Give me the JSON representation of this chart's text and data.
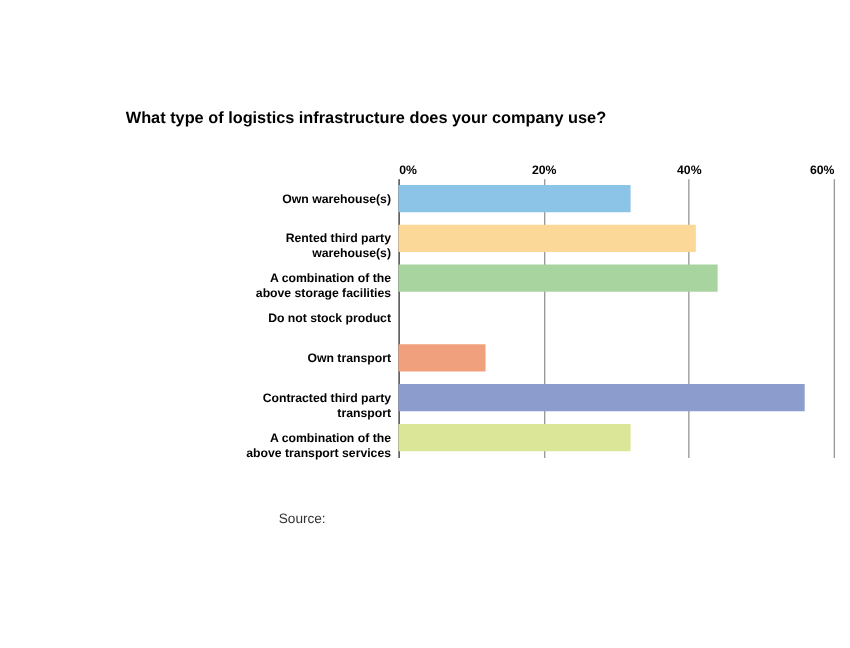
{
  "chart_data": {
    "type": "bar",
    "orientation": "horizontal",
    "title": "What type of logistics infrastructure does your company use?",
    "categories": [
      "Own warehouse(s)",
      "Rented third party warehouse(s)",
      "A combination of the above storage facilities",
      "Do not stock product",
      "Own transport",
      "Contracted third party transport",
      "A combination of the above transport services"
    ],
    "values": [
      32,
      41,
      44,
      0,
      12,
      56,
      32
    ],
    "colors": [
      "#8cc4e8",
      "#fcd898",
      "#a8d4a0",
      "#ffffff",
      "#f0a07c",
      "#8c9ccc",
      "#dce698"
    ],
    "xlim": [
      0,
      60
    ],
    "xticks": [
      {
        "value": 0,
        "label": "0%"
      },
      {
        "value": 20,
        "label": "20%"
      },
      {
        "value": 40,
        "label": "40%"
      },
      {
        "value": 60,
        "label": "60%"
      }
    ],
    "grid": "x",
    "legend": false,
    "annotations": [
      "Source:"
    ]
  }
}
